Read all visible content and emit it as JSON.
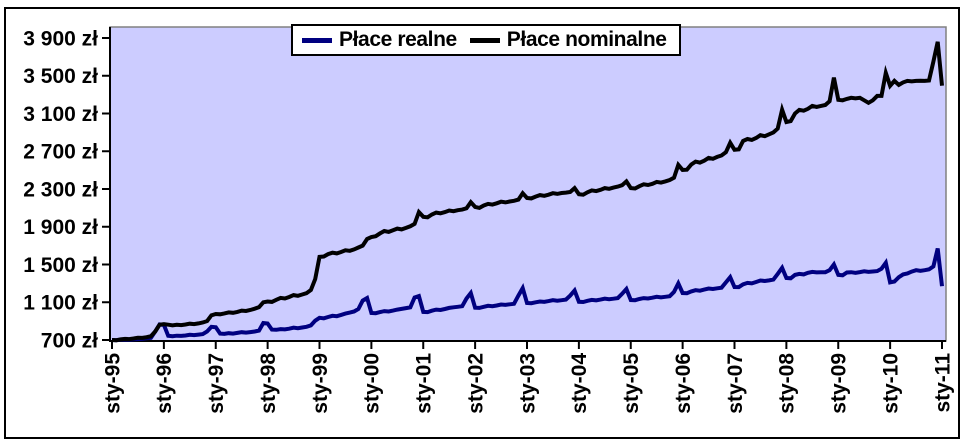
{
  "chart_data": {
    "type": "line",
    "title": "",
    "x_tick_labels": [
      "sty-95",
      "sty-96",
      "sty-97",
      "sty-98",
      "sty-99",
      "sty-00",
      "sty-01",
      "sty-02",
      "sty-03",
      "sty-04",
      "sty-05",
      "sty-06",
      "sty-07",
      "sty-08",
      "sty-09",
      "sty-10",
      "sty-11"
    ],
    "x_points_per_tick": 12,
    "n_points": 193,
    "y_tick_values": [
      700,
      1100,
      1500,
      1900,
      2300,
      2700,
      3100,
      3500,
      3900
    ],
    "y_tick_labels": [
      "700 zł",
      "1 100 zł",
      "1 500 zł",
      "1 900 zł",
      "2 300 zł",
      "2 700 zł",
      "3 100 zł",
      "3 500 zł",
      "3 900 zł"
    ],
    "ylim": [
      700,
      4040
    ],
    "grid": false,
    "legend_position": "top-center",
    "colors": {
      "plot_bg": "#CCCCFF",
      "plot_border": "#808080",
      "axis": "#000000",
      "text": "#000000"
    },
    "series": [
      {
        "name": "Płace realne",
        "color": "#000080",
        "values": [
          700,
          698,
          702,
          705,
          703,
          706,
          710,
          712,
          718,
          722,
          790,
          865,
          860,
          745,
          740,
          746,
          743,
          748,
          755,
          752,
          757,
          763,
          790,
          840,
          835,
          768,
          765,
          772,
          768,
          775,
          783,
          778,
          784,
          790,
          800,
          880,
          875,
          810,
          808,
          815,
          812,
          820,
          830,
          825,
          832,
          840,
          855,
          905,
          935,
          930,
          944,
          956,
          952,
          966,
          980,
          990,
          1002,
          1028,
          1118,
          1145,
          986,
          984,
          996,
          1006,
          1002,
          1012,
          1022,
          1030,
          1038,
          1046,
          1150,
          1165,
          998,
          996,
          1010,
          1022,
          1018,
          1028,
          1040,
          1046,
          1052,
          1058,
          1140,
          1198,
          1042,
          1040,
          1052,
          1062,
          1058,
          1066,
          1076,
          1072,
          1078,
          1084,
          1170,
          1250,
          1092,
          1090,
          1100,
          1108,
          1104,
          1112,
          1122,
          1116,
          1122,
          1128,
          1170,
          1225,
          1105,
          1103,
          1115,
          1125,
          1120,
          1128,
          1138,
          1132,
          1138,
          1144,
          1190,
          1240,
          1124,
          1122,
          1134,
          1144,
          1140,
          1148,
          1158,
          1152,
          1158,
          1164,
          1210,
          1300,
          1198,
          1196,
          1215,
          1228,
          1222,
          1234,
          1246,
          1240,
          1248,
          1254,
          1310,
          1365,
          1262,
          1260,
          1290,
          1305,
          1300,
          1315,
          1330,
          1325,
          1332,
          1340,
          1400,
          1465,
          1357,
          1354,
          1390,
          1400,
          1395,
          1412,
          1422,
          1416,
          1418,
          1418,
          1440,
          1500,
          1390,
          1386,
          1415,
          1418,
          1412,
          1420,
          1428,
          1422,
          1426,
          1430,
          1455,
          1518,
          1310,
          1320,
          1365,
          1395,
          1405,
          1425,
          1440,
          1432,
          1440,
          1448,
          1480,
          1670,
          1270
        ]
      },
      {
        "name": "Płace nominalne",
        "color": "#000000",
        "values": [
          700,
          698,
          706,
          712,
          710,
          716,
          724,
          722,
          730,
          740,
          790,
          862,
          868,
          862,
          856,
          861,
          858,
          864,
          873,
          869,
          876,
          885,
          900,
          962,
          975,
          972,
          982,
          992,
          988,
          998,
          1012,
          1007,
          1018,
          1032,
          1048,
          1100,
          1108,
          1104,
          1126,
          1146,
          1140,
          1156,
          1176,
          1168,
          1182,
          1196,
          1230,
          1345,
          1580,
          1585,
          1610,
          1625,
          1618,
          1632,
          1650,
          1645,
          1660,
          1680,
          1700,
          1770,
          1790,
          1800,
          1830,
          1855,
          1845,
          1862,
          1880,
          1872,
          1888,
          1905,
          1930,
          2055,
          2005,
          2000,
          2030,
          2050,
          2042,
          2055,
          2072,
          2065,
          2075,
          2082,
          2095,
          2160,
          2110,
          2100,
          2125,
          2142,
          2135,
          2148,
          2165,
          2158,
          2168,
          2175,
          2188,
          2255,
          2205,
          2200,
          2220,
          2235,
          2228,
          2240,
          2255,
          2248,
          2258,
          2262,
          2268,
          2310,
          2245,
          2240,
          2265,
          2285,
          2278,
          2292,
          2310,
          2302,
          2315,
          2325,
          2340,
          2380,
          2310,
          2305,
          2330,
          2350,
          2342,
          2355,
          2375,
          2368,
          2380,
          2395,
          2420,
          2555,
          2502,
          2505,
          2560,
          2590,
          2580,
          2600,
          2630,
          2620,
          2640,
          2655,
          2690,
          2790,
          2715,
          2720,
          2810,
          2830,
          2820,
          2840,
          2870,
          2860,
          2880,
          2900,
          2940,
          3140,
          3010,
          3020,
          3100,
          3138,
          3130,
          3150,
          3180,
          3170,
          3180,
          3190,
          3230,
          3480,
          3245,
          3240,
          3255,
          3266,
          3260,
          3266,
          3240,
          3213,
          3240,
          3286,
          3286,
          3530,
          3393,
          3445,
          3403,
          3430,
          3445,
          3440,
          3445,
          3448,
          3445,
          3450,
          3650,
          3860,
          3395
        ]
      }
    ]
  }
}
